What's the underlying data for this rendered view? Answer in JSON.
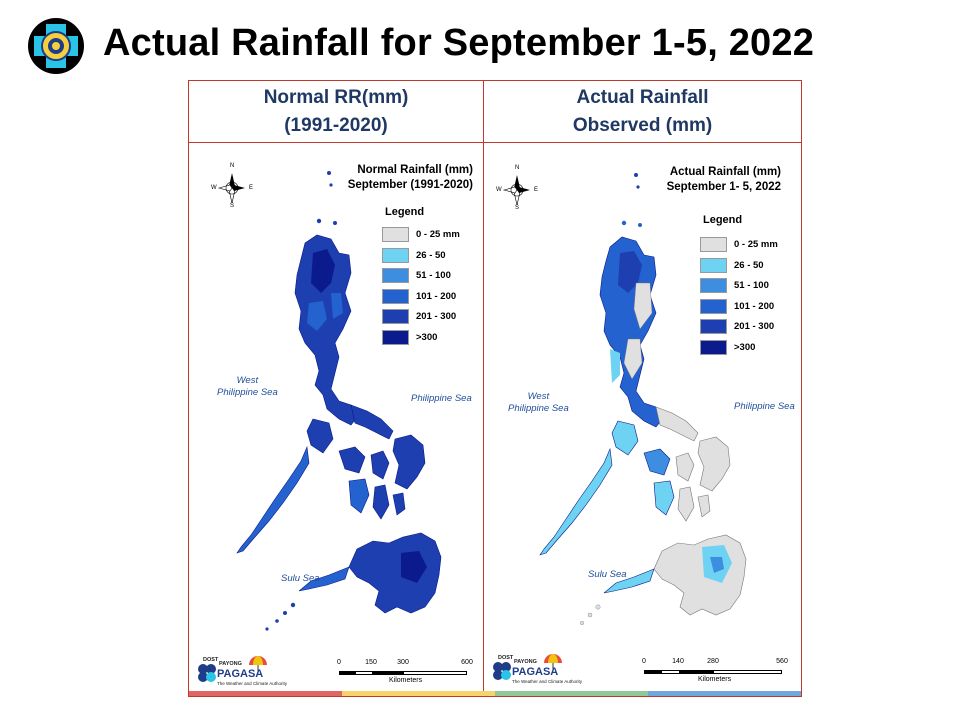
{
  "slide": {
    "title": "Actual Rainfall for September 1-5, 2022",
    "logo_icon": "pagasa-seal-icon"
  },
  "columns": {
    "left_header": [
      "Normal RR(mm)",
      "(1991-2020)"
    ],
    "right_header": [
      "Actual Rainfall",
      "Observed (mm)"
    ]
  },
  "left_map": {
    "title": [
      "Normal Rainfall (mm)",
      "September (1991-2020)"
    ],
    "legend_title": "Legend",
    "legend": [
      {
        "label": "0 - 25 mm",
        "color": "#e0e0e0"
      },
      {
        "label": "26 - 50",
        "color": "#6ed3f2"
      },
      {
        "label": "51 - 100",
        "color": "#3d8de0"
      },
      {
        "label": "101 - 200",
        "color": "#2463cf"
      },
      {
        "label": "201 - 300",
        "color": "#1d3fb0"
      },
      {
        "label": ">300",
        "color": "#0b1a8c"
      }
    ],
    "seas": {
      "west": [
        "West",
        "Philippine Sea"
      ],
      "east": "Philippine Sea",
      "south": "Sulu Sea"
    },
    "scale": {
      "ticks": [
        "0",
        "150",
        "300",
        "600"
      ],
      "unit": "Kilometers"
    }
  },
  "right_map": {
    "title": [
      "Actual Rainfall (mm)",
      "September 1- 5, 2022"
    ],
    "legend_title": "Legend",
    "legend": [
      {
        "label": "0 - 25 mm",
        "color": "#e0e0e0"
      },
      {
        "label": "26 - 50",
        "color": "#6ed3f2"
      },
      {
        "label": "51 - 100",
        "color": "#3d8de0"
      },
      {
        "label": "101 - 200",
        "color": "#2463cf"
      },
      {
        "label": "201 - 300",
        "color": "#1d3fb0"
      },
      {
        "label": ">300",
        "color": "#0b1a8c"
      }
    ],
    "seas": {
      "west": [
        "West",
        "Philippine Sea"
      ],
      "east": "Philippine Sea",
      "south": "Sulu Sea"
    },
    "scale": {
      "ticks": [
        "0",
        "140",
        "280",
        "560"
      ],
      "unit": "Kilometers"
    }
  },
  "branding": {
    "top_text": "DOST",
    "mid_text": "PAYONG",
    "name": "PAGASA",
    "tagline": "The Weather and Climate Authority"
  },
  "compass": {
    "n": "N",
    "s": "S",
    "e": "E",
    "w": "W"
  },
  "stripe_colors": [
    "#e06666",
    "#f6d36b",
    "#8fc99a",
    "#6fa8dc"
  ]
}
